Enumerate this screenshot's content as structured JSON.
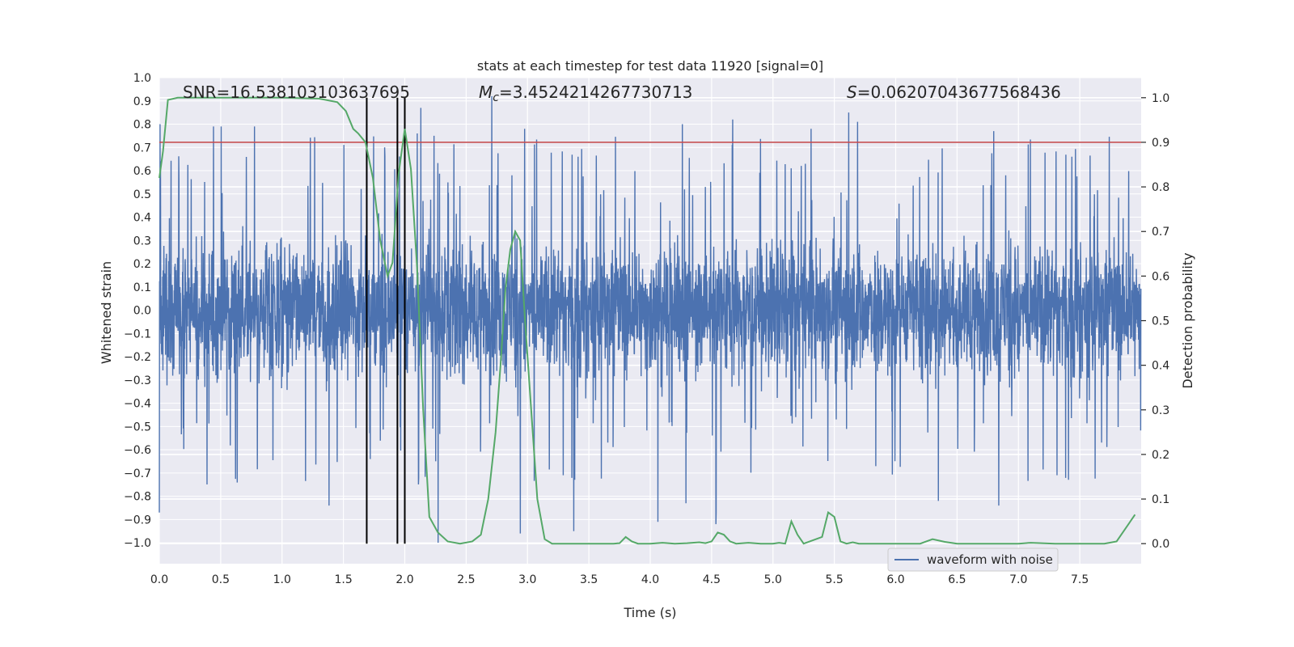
{
  "chart_data": {
    "type": "line",
    "title": "stats at each timestep for test data 11920 [signal=0]",
    "xlabel": "Time (s)",
    "ylabel_left": "Whitened strain",
    "ylabel_right": "Detection probability",
    "xlim": [
      0,
      8
    ],
    "ylim_left": [
      -1.09,
      1.0
    ],
    "ylim_right": [
      -0.045,
      1.045
    ],
    "x_ticks": [
      "0.0",
      "0.5",
      "1.0",
      "1.5",
      "2.0",
      "2.5",
      "3.0",
      "3.5",
      "4.0",
      "4.5",
      "5.0",
      "5.5",
      "6.0",
      "6.5",
      "7.0",
      "7.5"
    ],
    "y_ticks_left": [
      "1.0",
      "0.9",
      "0.8",
      "0.7",
      "0.6",
      "0.5",
      "0.4",
      "0.3",
      "0.2",
      "0.1",
      "0.0",
      "−0.1",
      "−0.2",
      "−0.3",
      "−0.4",
      "−0.5",
      "−0.6",
      "−0.7",
      "−0.8",
      "−0.9",
      "−1.0"
    ],
    "y_ticks_right": [
      "1.0",
      "0.9",
      "0.8",
      "0.7",
      "0.6",
      "0.5",
      "0.4",
      "0.3",
      "0.2",
      "0.1",
      "0.0"
    ],
    "annotations": {
      "snr": "SNR=16.538103103637695",
      "mc_prefix": "M",
      "mc_sub": "c",
      "mc_value": "=3.4524214267730713",
      "s_prefix": "S",
      "s_value": "=0.06207043677568436"
    },
    "legend": {
      "label": "waveform with noise",
      "position": "lower-right"
    },
    "threshold_probability": 0.9,
    "vertical_markers": [
      1.69,
      1.94,
      2.0
    ],
    "waveform": {
      "name": "waveform with noise",
      "color": "#4c72b0",
      "sample_rate_approx": 512,
      "envelope_upper_typical": 0.45,
      "envelope_lower_typical": -0.45,
      "spike_peaks_upper": [
        0.76,
        0.79,
        0.77,
        0.79,
        0.92,
        0.75,
        0.8,
        0.78,
        0.82,
        0.85,
        0.87,
        0.78,
        0.81,
        0.79,
        0.8
      ],
      "spike_peaks_lower": [
        -0.64,
        -0.91,
        -0.96,
        -0.82,
        -0.95,
        -0.84,
        -0.84,
        -0.87,
        -0.92,
        -0.87,
        -1.0,
        -0.83
      ]
    },
    "probability_series": {
      "name": "Detection probability",
      "color": "#55a868",
      "x": [
        0.0,
        0.03,
        0.07,
        0.15,
        0.3,
        0.6,
        1.0,
        1.3,
        1.45,
        1.52,
        1.58,
        1.62,
        1.68,
        1.74,
        1.8,
        1.86,
        1.9,
        1.95,
        2.0,
        2.05,
        2.1,
        2.15,
        2.2,
        2.27,
        2.35,
        2.45,
        2.55,
        2.62,
        2.68,
        2.74,
        2.78,
        2.82,
        2.86,
        2.9,
        2.94,
        2.98,
        3.02,
        3.08,
        3.14,
        3.2,
        3.4,
        3.7,
        3.75,
        3.8,
        3.85,
        3.9,
        4.0,
        4.1,
        4.2,
        4.3,
        4.4,
        4.45,
        4.5,
        4.55,
        4.6,
        4.65,
        4.7,
        4.8,
        4.9,
        5.0,
        5.05,
        5.1,
        5.15,
        5.2,
        5.25,
        5.3,
        5.4,
        5.45,
        5.5,
        5.55,
        5.6,
        5.65,
        5.7,
        5.8,
        5.9,
        6.0,
        6.2,
        6.3,
        6.4,
        6.5,
        6.7,
        6.9,
        7.0,
        7.1,
        7.3,
        7.5,
        7.6,
        7.7,
        7.8,
        7.95
      ],
      "values": [
        0.82,
        0.88,
        0.995,
        1.0,
        1.0,
        1.0,
        1.0,
        0.998,
        0.99,
        0.97,
        0.93,
        0.92,
        0.9,
        0.82,
        0.68,
        0.6,
        0.63,
        0.83,
        0.93,
        0.84,
        0.62,
        0.3,
        0.06,
        0.025,
        0.005,
        0.0,
        0.005,
        0.02,
        0.1,
        0.25,
        0.4,
        0.57,
        0.66,
        0.7,
        0.68,
        0.5,
        0.34,
        0.1,
        0.01,
        0.0,
        0.0,
        0.0,
        0.001,
        0.015,
        0.005,
        0.0,
        0.0,
        0.002,
        0.0,
        0.001,
        0.003,
        0.001,
        0.005,
        0.025,
        0.02,
        0.005,
        0.0,
        0.002,
        0.0,
        0.0,
        0.002,
        0.0,
        0.05,
        0.02,
        0.0,
        0.005,
        0.015,
        0.07,
        0.06,
        0.005,
        0.0,
        0.003,
        0.0,
        0.0,
        0.0,
        0.0,
        0.0,
        0.01,
        0.004,
        0.0,
        0.0,
        0.0,
        0.0,
        0.002,
        0.0,
        0.0,
        0.0,
        0.0,
        0.005,
        0.065
      ]
    },
    "colors": {
      "background": "#eaeaf2",
      "grid": "#ffffff",
      "threshold": "#c44e52",
      "marker": "#000000"
    }
  }
}
